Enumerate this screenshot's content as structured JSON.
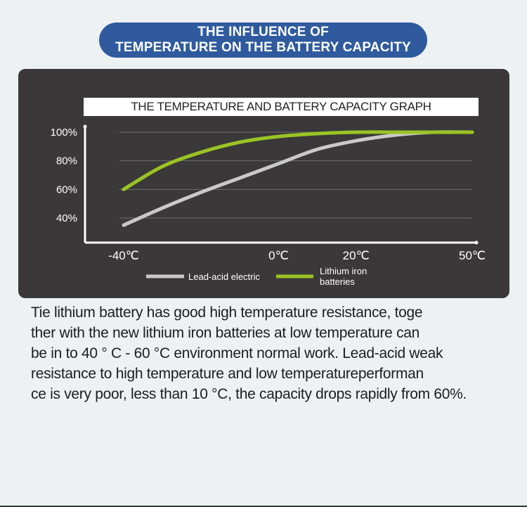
{
  "banner": {
    "line1": "THE INFLUENCE OF",
    "line2": "TEMPERATURE ON THE BATTERY CAPACITY"
  },
  "chart_data": {
    "type": "line",
    "title": "THE TEMPERATURE AND BATTERY CAPACITY GRAPH",
    "x_ticks": [
      {
        "label": "-40℃",
        "value": -40
      },
      {
        "label": "0℃",
        "value": 0
      },
      {
        "label": "20℃",
        "value": 20
      },
      {
        "label": "50℃",
        "value": 50
      }
    ],
    "y_ticks": [
      {
        "label": "100%",
        "value": 100
      },
      {
        "label": "80%",
        "value": 80
      },
      {
        "label": "60%",
        "value": 60
      },
      {
        "label": "40%",
        "value": 40
      }
    ],
    "grid": true,
    "series": [
      {
        "name": "Lead-acid electric",
        "color": "#c9c9c9",
        "points": [
          [
            -40,
            35
          ],
          [
            -30,
            47
          ],
          [
            -20,
            58
          ],
          [
            -10,
            68
          ],
          [
            0,
            78
          ],
          [
            10,
            88
          ],
          [
            20,
            94
          ],
          [
            30,
            98
          ],
          [
            40,
            100
          ],
          [
            50,
            100
          ]
        ]
      },
      {
        "name": "Lithium iron batteries",
        "color": "#9ac423",
        "points": [
          [
            -40,
            60
          ],
          [
            -30,
            76
          ],
          [
            -20,
            86
          ],
          [
            -10,
            93
          ],
          [
            0,
            97
          ],
          [
            10,
            99
          ],
          [
            20,
            100
          ],
          [
            30,
            100
          ],
          [
            40,
            100
          ],
          [
            50,
            100
          ]
        ]
      }
    ],
    "legend": [
      {
        "label": "Lead-acid electric",
        "color": "#c9c9c9"
      },
      {
        "label_lines": [
          "Lithium iron",
          "batteries"
        ],
        "color": "#9ac423"
      }
    ],
    "legend_position": "bottom"
  },
  "description": {
    "lines": [
      "Tie lithium battery has good high temperature resistance, toge",
      "ther with the new lithium iron batteries at low temperature can",
      "be in to 40 ° C - 60 °C environment normal work. Lead-acid weak",
      "resistance to high temperature and low temperatureperforman",
      "ce is very poor, less than 10 °C, the capacity drops rapidly from 60%."
    ]
  }
}
